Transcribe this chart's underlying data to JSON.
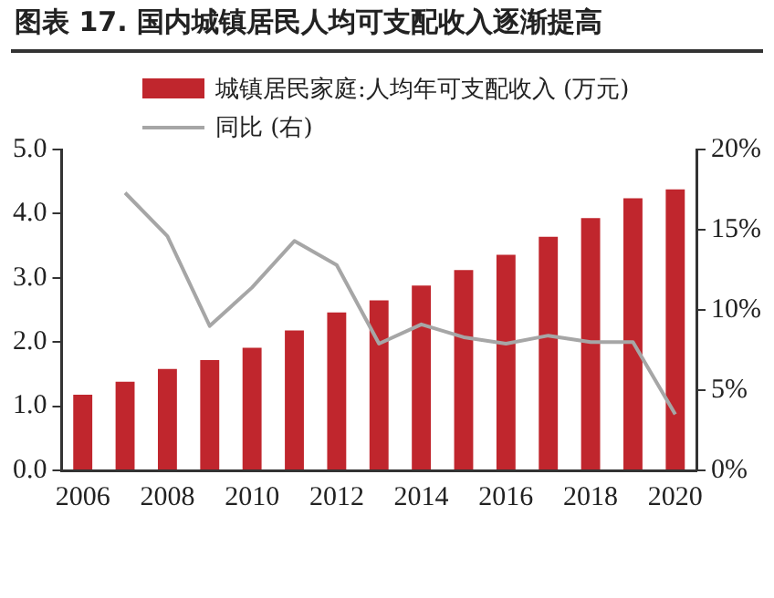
{
  "chart_data": {
    "type": "bar",
    "title": "图表 17. 国内城镇居民人均可支配收入逐渐提高",
    "categories": [
      "2006",
      null,
      "2008",
      null,
      "2010",
      null,
      "2012",
      null,
      "2014",
      null,
      "2016",
      null,
      "2018",
      null,
      "2020"
    ],
    "series": [
      {
        "name": "城镇居民家庭:人均年可支配收入 (万元)",
        "color": "#c0262d",
        "values": [
          1.18,
          1.38,
          1.58,
          1.72,
          1.91,
          2.18,
          2.46,
          2.65,
          2.88,
          3.12,
          3.36,
          3.64,
          3.93,
          4.24,
          4.38
        ]
      },
      {
        "name": "同比 (右)",
        "type": "line",
        "axis": "y2",
        "color": "#a6a6a6",
        "values": [
          null,
          17.3,
          14.6,
          9.0,
          11.4,
          14.3,
          12.8,
          7.9,
          9.1,
          8.3,
          7.9,
          8.4,
          8.0,
          8.0,
          3.5
        ]
      }
    ],
    "ylim": [
      0,
      5
    ],
    "yticks": [
      {
        "value": 0,
        "label": "0.0"
      },
      {
        "value": 1,
        "label": "1.0"
      },
      {
        "value": 2,
        "label": "2.0"
      },
      {
        "value": 3,
        "label": "3.0"
      },
      {
        "value": 4,
        "label": "4.0"
      },
      {
        "value": 5,
        "label": "5.0"
      }
    ],
    "y2lim": [
      0,
      20
    ],
    "y2ticks": [
      {
        "value": 0,
        "label": "0%"
      },
      {
        "value": 5,
        "label": "5%"
      },
      {
        "value": 10,
        "label": "10%"
      },
      {
        "value": 15,
        "label": "15%"
      },
      {
        "value": 20,
        "label": "20%"
      }
    ],
    "grid": false,
    "legend": "top left",
    "marker": "none"
  }
}
